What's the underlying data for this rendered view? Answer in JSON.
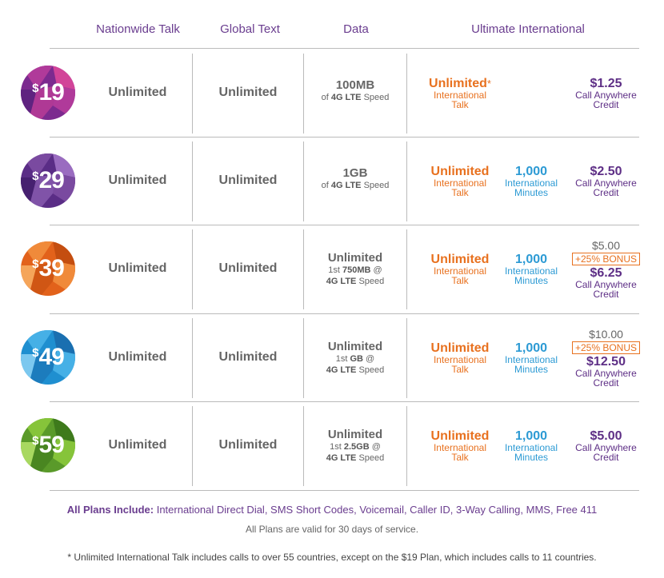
{
  "headers": {
    "talk": "Nationwide Talk",
    "text": "Global Text",
    "data": "Data",
    "intl": "Ultimate International"
  },
  "plans": [
    {
      "price": "19",
      "talk": "Unlimited",
      "text": "Unlimited",
      "data_main": "100MB",
      "data_sub_pre": "of ",
      "data_sub_bold": "4G LTE",
      "data_sub_post": " Speed",
      "intl_talk": "Unlimited",
      "intl_talk_star": "*",
      "intl_talk_sub1": "International",
      "intl_talk_sub2": "Talk",
      "intl_min": "",
      "intl_min_sub": "",
      "credit_orig": "",
      "credit_bonus": "",
      "credit": "$1.25",
      "credit_sub1": "Call Anywhere",
      "credit_sub2": "Credit",
      "colors": [
        "#7c2a8f",
        "#b03a9a",
        "#d24499",
        "#5f2380"
      ]
    },
    {
      "price": "29",
      "talk": "Unlimited",
      "text": "Unlimited",
      "data_main": "1GB",
      "data_sub_pre": "of ",
      "data_sub_bold": "4G LTE",
      "data_sub_post": " Speed",
      "intl_talk": "Unlimited",
      "intl_talk_star": "",
      "intl_talk_sub1": "International",
      "intl_talk_sub2": "Talk",
      "intl_min": "1,000",
      "intl_min_sub": "International",
      "intl_min_sub2": "Minutes",
      "credit_orig": "",
      "credit_bonus": "",
      "credit": "$2.50",
      "credit_sub1": "Call Anywhere",
      "credit_sub2": "Credit",
      "colors": [
        "#5a2d86",
        "#7a4aa0",
        "#9a6cc0",
        "#462070"
      ]
    },
    {
      "price": "39",
      "talk": "Unlimited",
      "text": "Unlimited",
      "data_main": "Unlimited",
      "data_sub_pre": "1st ",
      "data_sub_bold": "750MB",
      "data_sub_post": " @",
      "data_sub2_bold": "4G LTE",
      "data_sub2_post": " Speed",
      "intl_talk": "Unlimited",
      "intl_talk_star": "",
      "intl_talk_sub1": "International",
      "intl_talk_sub2": "Talk",
      "intl_min": "1,000",
      "intl_min_sub": "International",
      "intl_min_sub2": "Minutes",
      "credit_orig": "$5.00",
      "credit_bonus": "+25% BONUS",
      "credit": "$6.25",
      "credit_sub1": "Call Anywhere",
      "credit_sub2": "Credit",
      "colors": [
        "#e2621b",
        "#f08a3a",
        "#c44e10",
        "#f5a55a"
      ]
    },
    {
      "price": "49",
      "talk": "Unlimited",
      "text": "Unlimited",
      "data_main": "Unlimited",
      "data_sub_pre": "1st ",
      "data_sub_bold": "GB",
      "data_sub_post": " @",
      "data_sub2_bold": "4G LTE",
      "data_sub2_post": " Speed",
      "intl_talk": "Unlimited",
      "intl_talk_star": "",
      "intl_talk_sub1": "International",
      "intl_talk_sub2": "Talk",
      "intl_min": "1,000",
      "intl_min_sub": "International",
      "intl_min_sub2": "Minutes",
      "credit_orig": "$10.00",
      "credit_bonus": "+25% BONUS",
      "credit": "$12.50",
      "credit_sub1": "Call Anywhere",
      "credit_sub2": "Credit",
      "colors": [
        "#1f8fd0",
        "#46b0e6",
        "#1a6fb0",
        "#7cc8ef"
      ]
    },
    {
      "price": "59",
      "talk": "Unlimited",
      "text": "Unlimited",
      "data_main": "Unlimited",
      "data_sub_pre": "1st ",
      "data_sub_bold": "2.5GB",
      "data_sub_post": " @",
      "data_sub2_bold": "4G LTE",
      "data_sub2_post": " Speed",
      "intl_talk": "Unlimited",
      "intl_talk_star": "",
      "intl_talk_sub1": "International",
      "intl_talk_sub2": "Talk",
      "intl_min": "1,000",
      "intl_min_sub": "International",
      "intl_min_sub2": "Minutes",
      "credit_orig": "",
      "credit_bonus": "",
      "credit": "$5.00",
      "credit_sub1": "Call Anywhere",
      "credit_sub2": "Credit",
      "colors": [
        "#5a9a2a",
        "#86c43a",
        "#3e7a1c",
        "#a8d860"
      ]
    }
  ],
  "footer": {
    "includes_label": "All Plans Include:",
    "includes_text": " International Direct Dial, SMS Short Codes, Voicemail, Caller ID, 3-Way Calling, MMS, Free 411",
    "valid": "All Plans are valid for 30 days of service.",
    "note": "* Unlimited International Talk includes calls to over 55 countries, except on the $19 Plan, which includes calls to 11 countries."
  }
}
